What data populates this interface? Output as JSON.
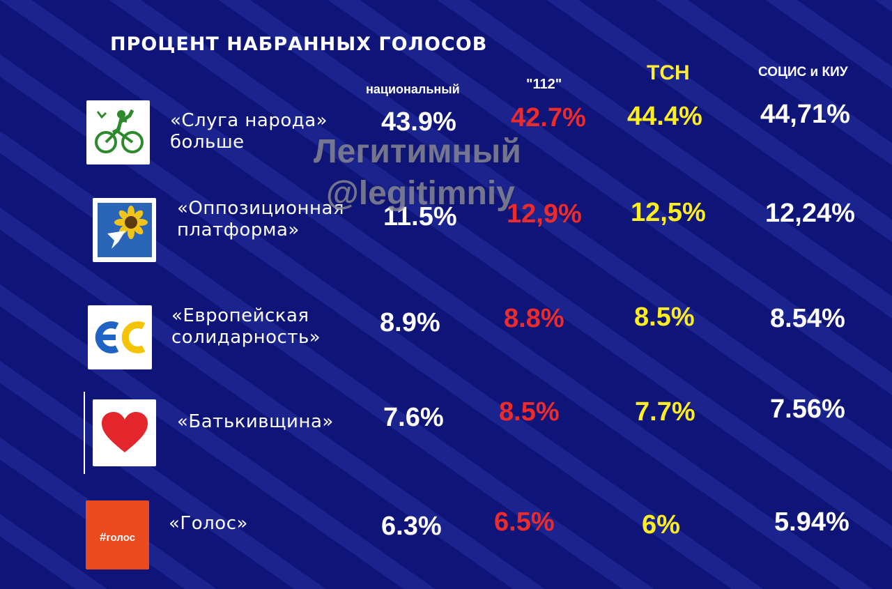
{
  "title": "ПРОЦЕНТ НАБРАННЫХ ГОЛОСОВ",
  "columns": {
    "national": "национальный",
    "ch112": "\"112\"",
    "tsn": "ТСН",
    "socis": "СОЦИС и КИУ"
  },
  "watermark": {
    "line1": "Легитимный",
    "line2": "@legitimniy"
  },
  "parties": [
    {
      "name": "«Слуга народа»\nбольше",
      "national": "43.9%",
      "ch112": "42.7%",
      "tsn": "44.4%",
      "socis": "44,71%"
    },
    {
      "name": "«Оппозиционная\nплатформа»",
      "national": "11.5%",
      "ch112": "12,9%",
      "tsn": "12,5%",
      "socis": "12,24%"
    },
    {
      "name": "«Европейская\nсолидарность»",
      "national": "8.9%",
      "ch112": "8.8%",
      "tsn": "8.5%",
      "socis": "8.54%"
    },
    {
      "name": "«Батькивщина»",
      "national": "7.6%",
      "ch112": "8.5%",
      "tsn": "7.7%",
      "socis": "7.56%"
    },
    {
      "name": "«Голос»",
      "national": "6.3%",
      "ch112": "6.5%",
      "tsn": "6%",
      "socis": "5.94%"
    }
  ],
  "logos": {
    "es_text": "ЄС",
    "golos_text": "голос"
  },
  "colors": {
    "background": "#0f1478",
    "national": "#ffffff",
    "ch112": "#ee2b2b",
    "tsn": "#ffee1e",
    "socis": "#ffffff"
  }
}
